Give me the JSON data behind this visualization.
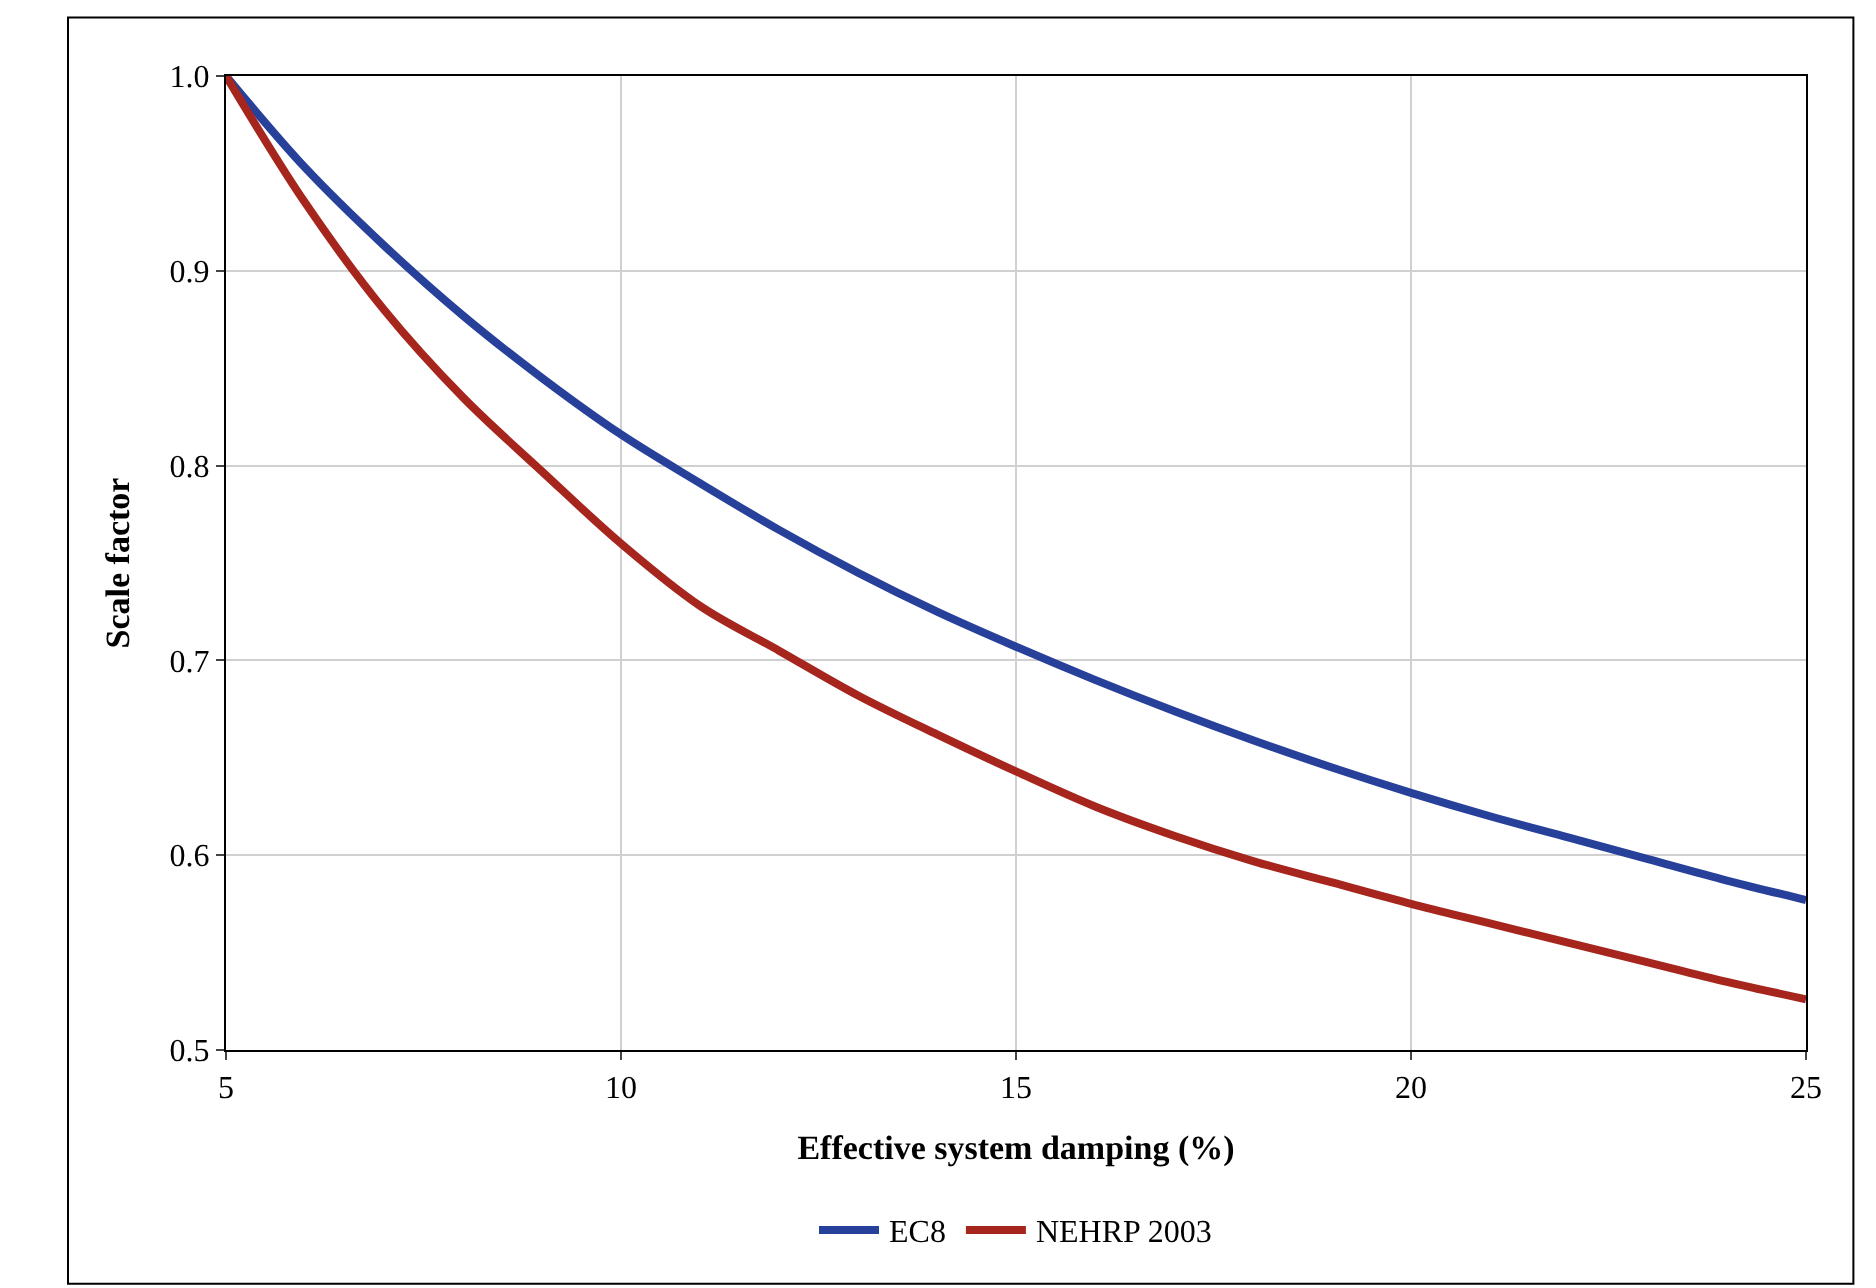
{
  "chart_data": {
    "type": "line",
    "xlabel": "Effective system damping (%)",
    "ylabel": "Scale factor",
    "x": [
      5,
      6,
      7,
      8,
      9,
      10,
      11,
      12,
      13,
      14,
      15,
      16,
      17,
      18,
      19,
      20,
      21,
      22,
      23,
      24,
      25
    ],
    "series": [
      {
        "name": "EC8",
        "color": "#27409a",
        "values": [
          1.0,
          0.953,
          0.913,
          0.877,
          0.845,
          0.816,
          0.791,
          0.767,
          0.745,
          0.725,
          0.707,
          0.69,
          0.674,
          0.659,
          0.645,
          0.632,
          0.62,
          0.609,
          0.598,
          0.587,
          0.577
        ]
      },
      {
        "name": "NEHRP 2003",
        "color": "#a6261e",
        "values": [
          1.0,
          0.935,
          0.88,
          0.835,
          0.797,
          0.76,
          0.728,
          0.705,
          0.682,
          0.662,
          0.643,
          0.625,
          0.61,
          0.597,
          0.586,
          0.575,
          0.565,
          0.555,
          0.545,
          0.535,
          0.526
        ]
      }
    ],
    "xlim": [
      5,
      25
    ],
    "xticks": [
      5,
      10,
      15,
      20,
      25
    ],
    "ylim": [
      0.5,
      1.0
    ],
    "yticks": [
      0.5,
      0.6,
      0.7,
      0.8,
      0.9,
      {
        "value": 1.0,
        "label": "1.0"
      }
    ],
    "grid": true,
    "legend": "bottom",
    "marker": "none",
    "line_style": "solid"
  }
}
